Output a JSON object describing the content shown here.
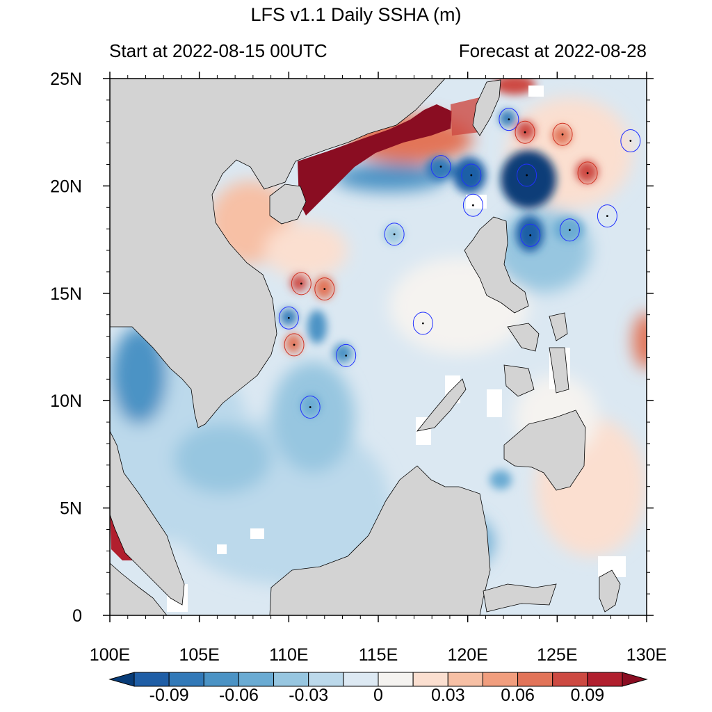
{
  "title": "LFS v1.1 Daily SSHA (m)",
  "subtitle_left": "Start at 2022-08-15 00UTC",
  "subtitle_right": "Forecast at 2022-08-28",
  "axes": {
    "lon_range": [
      100,
      130
    ],
    "lat_range": [
      0,
      25
    ],
    "x_ticks": [
      "100E",
      "105E",
      "110E",
      "115E",
      "120E",
      "125E",
      "130E"
    ],
    "y_ticks": [
      "0",
      "5N",
      "10N",
      "15N",
      "20N",
      "25N"
    ]
  },
  "colorbar": {
    "colors": [
      "#083c78",
      "#1f5ea6",
      "#3279b8",
      "#4b93c5",
      "#6aabd3",
      "#97c6e0",
      "#bcd9eb",
      "#dde9f3",
      "#f5f3f0",
      "#fbdfd0",
      "#f7c0a5",
      "#f19e7e",
      "#e27459",
      "#cd4a42",
      "#b11f2e",
      "#8a0d22"
    ],
    "tick_labels": [
      "-0.09",
      "-0.06",
      "-0.03",
      "0",
      "0.03",
      "0.06",
      "0.09"
    ],
    "range": [
      -0.105,
      0.105
    ]
  },
  "colors": {
    "land": "#d3d3d3",
    "ocean_background": "#dbe8f2",
    "missing": "#ffffff"
  },
  "eddies": [
    {
      "type": "cyclonic",
      "lon": 110.0,
      "lat": 13.85
    },
    {
      "type": "cyclonic",
      "lon": 113.2,
      "lat": 12.1
    },
    {
      "type": "cyclonic",
      "lon": 111.2,
      "lat": 9.7
    },
    {
      "type": "cyclonic",
      "lon": 115.9,
      "lat": 17.75
    },
    {
      "type": "cyclonic",
      "lon": 117.5,
      "lat": 13.6
    },
    {
      "type": "cyclonic",
      "lon": 118.5,
      "lat": 20.9
    },
    {
      "type": "cyclonic",
      "lon": 120.2,
      "lat": 20.5
    },
    {
      "type": "cyclonic",
      "lon": 120.3,
      "lat": 19.1
    },
    {
      "type": "cyclonic",
      "lon": 122.3,
      "lat": 23.1
    },
    {
      "type": "cyclonic",
      "lon": 123.3,
      "lat": 20.5
    },
    {
      "type": "cyclonic",
      "lon": 123.5,
      "lat": 17.7
    },
    {
      "type": "cyclonic",
      "lon": 125.7,
      "lat": 17.95
    },
    {
      "type": "cyclonic",
      "lon": 127.8,
      "lat": 18.6
    },
    {
      "type": "cyclonic",
      "lon": 129.1,
      "lat": 22.1
    },
    {
      "type": "anticyclonic",
      "lon": 110.7,
      "lat": 15.45
    },
    {
      "type": "anticyclonic",
      "lon": 112.0,
      "lat": 15.2
    },
    {
      "type": "anticyclonic",
      "lon": 110.3,
      "lat": 12.6
    },
    {
      "type": "anticyclonic",
      "lon": 123.2,
      "lat": 22.5
    },
    {
      "type": "anticyclonic",
      "lon": 125.3,
      "lat": 22.4
    },
    {
      "type": "anticyclonic",
      "lon": 126.7,
      "lat": 20.6
    }
  ]
}
